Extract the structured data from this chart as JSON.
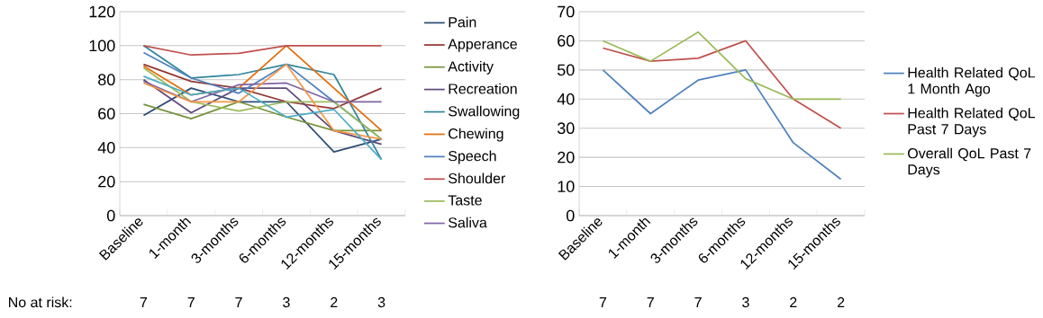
{
  "chart_data": [
    {
      "type": "line",
      "categories": [
        "Baseline",
        "1-month",
        "3-months",
        "6-months",
        "12-months",
        "15-months"
      ],
      "ylim": [
        0,
        120
      ],
      "yticks": [
        0,
        20,
        40,
        60,
        80,
        100,
        120
      ],
      "grid": "y",
      "legend": "right",
      "annotations": [
        "No at risk:",
        "7",
        "7",
        "7",
        "3",
        "2",
        "3"
      ],
      "series": [
        {
          "name": "Pain",
          "color": "#2c4d75",
          "values": [
            59,
            75,
            67,
            67,
            37.5,
            45
          ]
        },
        {
          "name": "Apperance",
          "color": "#943634",
          "values": [
            89,
            79,
            75,
            67,
            63,
            75
          ]
        },
        {
          "name": "Activity",
          "color": "#77933c",
          "values": [
            65.5,
            57,
            67,
            58,
            50,
            50
          ]
        },
        {
          "name": "Recreation",
          "color": "#5f4a7b",
          "values": [
            80,
            60.5,
            75,
            75,
            50,
            42
          ]
        },
        {
          "name": "Swallowing",
          "color": "#31859c",
          "values": [
            100,
            81,
            83,
            89,
            83,
            33
          ]
        },
        {
          "name": "Chewing",
          "color": "#e46c0a",
          "values": [
            88,
            71,
            75,
            100,
            75,
            50
          ]
        },
        {
          "name": "Speech",
          "color": "#4f81bd",
          "values": [
            96,
            81,
            72,
            89,
            67,
            45
          ]
        },
        {
          "name": "Shoulder",
          "color": "#c0504d",
          "values": [
            100,
            94.5,
            95.5,
            100,
            100,
            100
          ]
        },
        {
          "name": "Taste",
          "color": "#9bbb59",
          "values": [
            87,
            67,
            61.5,
            67,
            67,
            45
          ]
        },
        {
          "name": "Saliva",
          "color": "#8064a2",
          "values": [
            79,
            67,
            77,
            78,
            67,
            67
          ]
        },
        {
          "color": "#f79646",
          "values": [
            78,
            67,
            67,
            89,
            50,
            45
          ]
        },
        {
          "color": "#4bacc6",
          "values": [
            82,
            71,
            75,
            58,
            62.5,
            33
          ]
        }
      ]
    },
    {
      "type": "line",
      "categories": [
        "Baseline",
        "1-month",
        "3-months",
        "6-months",
        "12-months",
        "15-months"
      ],
      "ylim": [
        0,
        70
      ],
      "yticks": [
        0,
        10,
        20,
        30,
        40,
        50,
        60,
        70
      ],
      "grid": "y",
      "legend": "right",
      "annotations": [
        "7",
        "7",
        "7",
        "3",
        "2",
        "2"
      ],
      "series": [
        {
          "name": "Health Related QoL 1 Month Ago",
          "color": "#4f81bd",
          "values": [
            50,
            35,
            46.5,
            50,
            25,
            12.5
          ]
        },
        {
          "name": "Health Related QoL Past 7 Days",
          "color": "#c0504d",
          "values": [
            57.5,
            53,
            54,
            60,
            40,
            30
          ]
        },
        {
          "name": "Overall QoL Past 7 Days",
          "color": "#9bbb59",
          "values": [
            60,
            53,
            63,
            47,
            40,
            40
          ]
        }
      ]
    }
  ]
}
